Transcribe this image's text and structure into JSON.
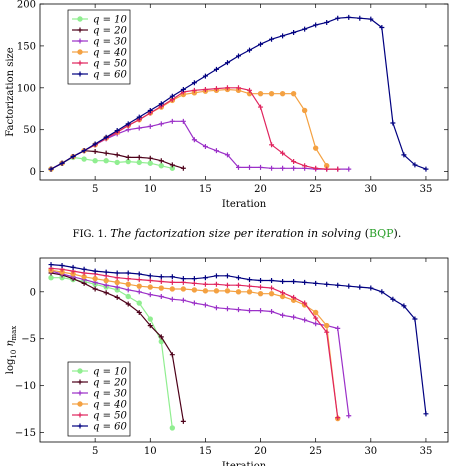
{
  "caption": {
    "fig_label": "Fig. 1.",
    "text": "The factorization size per iteration in solving",
    "ref": "BQP",
    "ref_color": "#2ca02c"
  },
  "chart_data": [
    {
      "type": "line",
      "xlabel": "Iteration",
      "ylabel": "Factorization size",
      "xlim": [
        0,
        37
      ],
      "ylim": [
        -10,
        200
      ],
      "xticks": [
        5,
        10,
        15,
        20,
        25,
        30,
        35
      ],
      "yticks": [
        0,
        50,
        100,
        150,
        200
      ],
      "legend_position": "top-left",
      "series": [
        {
          "name": "q = 10",
          "color": "#90ee90",
          "marker": "circle",
          "x": [
            1,
            2,
            3,
            4,
            5,
            6,
            7,
            8,
            9,
            10,
            11,
            12
          ],
          "y": [
            3,
            10,
            17,
            15,
            13,
            13,
            11,
            12,
            11,
            10,
            7,
            4
          ]
        },
        {
          "name": "q = 20",
          "color": "#4d0019",
          "marker": "plus",
          "x": [
            1,
            2,
            3,
            4,
            5,
            6,
            7,
            8,
            9,
            10,
            11,
            12,
            13
          ],
          "y": [
            3,
            10,
            18,
            25,
            24,
            22,
            20,
            17,
            17,
            16,
            13,
            8,
            4
          ]
        },
        {
          "name": "q = 30",
          "color": "#9b30c8",
          "marker": "plus",
          "x": [
            1,
            2,
            3,
            4,
            5,
            6,
            7,
            8,
            9,
            10,
            11,
            12,
            13,
            14,
            15,
            16,
            17,
            18,
            19,
            20,
            21,
            22,
            23,
            24,
            25,
            26,
            27,
            28
          ],
          "y": [
            3,
            10,
            18,
            25,
            32,
            39,
            45,
            50,
            52,
            54,
            57,
            60,
            60,
            38,
            30,
            25,
            20,
            5,
            5,
            5,
            4,
            4,
            4,
            4,
            3,
            3,
            3,
            3
          ]
        },
        {
          "name": "q = 40",
          "color": "#f4a142",
          "marker": "circle",
          "x": [
            1,
            2,
            3,
            4,
            5,
            6,
            7,
            8,
            9,
            10,
            11,
            12,
            13,
            14,
            15,
            16,
            17,
            18,
            19,
            20,
            21,
            22,
            23,
            24,
            25,
            26
          ],
          "y": [
            3,
            10,
            18,
            25,
            32,
            40,
            47,
            55,
            62,
            70,
            77,
            85,
            92,
            94,
            96,
            97,
            98,
            97,
            93,
            93,
            93,
            93,
            93,
            73,
            28,
            7
          ]
        },
        {
          "name": "q = 50",
          "color": "#e0245e",
          "marker": "plus",
          "x": [
            1,
            2,
            3,
            4,
            5,
            6,
            7,
            8,
            9,
            10,
            11,
            12,
            13,
            14,
            15,
            16,
            17,
            18,
            19,
            20,
            21,
            22,
            23,
            24,
            25,
            26,
            27
          ],
          "y": [
            3,
            10,
            18,
            25,
            32,
            40,
            47,
            55,
            62,
            70,
            78,
            86,
            95,
            97,
            98,
            99,
            100,
            100,
            97,
            77,
            32,
            22,
            12,
            7,
            4,
            3,
            3
          ]
        },
        {
          "name": "q = 60",
          "color": "#000080",
          "marker": "plus",
          "x": [
            1,
            2,
            3,
            4,
            5,
            6,
            7,
            8,
            9,
            10,
            11,
            12,
            13,
            14,
            15,
            16,
            17,
            18,
            19,
            20,
            21,
            22,
            23,
            24,
            25,
            26,
            27,
            28,
            29,
            30,
            31,
            32,
            33,
            34,
            35
          ],
          "y": [
            3,
            10,
            18,
            25,
            33,
            41,
            49,
            57,
            65,
            73,
            81,
            90,
            98,
            106,
            114,
            122,
            130,
            138,
            145,
            152,
            158,
            162,
            166,
            170,
            175,
            178,
            183,
            184,
            183,
            182,
            172,
            58,
            20,
            8,
            3
          ]
        }
      ]
    },
    {
      "type": "line",
      "xlabel": "Iteration",
      "ylabel": "log10 η_max",
      "xlim": [
        0,
        37
      ],
      "ylim": [
        -16,
        3.6
      ],
      "xticks": [
        5,
        10,
        15,
        20,
        25,
        30,
        35
      ],
      "yticks": [
        0,
        -5,
        -10,
        -15
      ],
      "legend_position": "bottom-left",
      "series": [
        {
          "name": "q = 10",
          "color": "#90ee90",
          "marker": "circle",
          "x": [
            1,
            2,
            3,
            4,
            5,
            6,
            7,
            8,
            9,
            10,
            11,
            12
          ],
          "y": [
            1.5,
            1.5,
            1.3,
            1.1,
            0.8,
            0.5,
            0.2,
            -0.5,
            -1.2,
            -2.9,
            -5.3,
            -14.5
          ]
        },
        {
          "name": "q = 20",
          "color": "#4d0019",
          "marker": "plus",
          "x": [
            1,
            2,
            3,
            4,
            5,
            6,
            7,
            8,
            9,
            10,
            11,
            12,
            13
          ],
          "y": [
            2.0,
            1.8,
            1.4,
            0.9,
            0.3,
            -0.1,
            -0.6,
            -1.3,
            -2.2,
            -3.6,
            -4.8,
            -6.7,
            -13.8
          ]
        },
        {
          "name": "q = 30",
          "color": "#9b30c8",
          "marker": "plus",
          "x": [
            1,
            2,
            3,
            4,
            5,
            6,
            7,
            8,
            9,
            10,
            11,
            12,
            13,
            14,
            15,
            16,
            17,
            18,
            19,
            20,
            21,
            22,
            23,
            24,
            25,
            26,
            27,
            28
          ],
          "y": [
            2.2,
            1.9,
            1.6,
            1.3,
            1.0,
            0.7,
            0.5,
            0.2,
            0.0,
            -0.3,
            -0.5,
            -0.8,
            -0.9,
            -1.2,
            -1.4,
            -1.7,
            -1.8,
            -1.9,
            -2.0,
            -2.0,
            -2.1,
            -2.5,
            -2.7,
            -3.0,
            -3.4,
            -3.6,
            -3.9,
            -13.2
          ]
        },
        {
          "name": "q = 40",
          "color": "#f4a142",
          "marker": "circle",
          "x": [
            1,
            2,
            3,
            4,
            5,
            6,
            7,
            8,
            9,
            10,
            11,
            12,
            13,
            14,
            15,
            16,
            17,
            18,
            19,
            20,
            21,
            22,
            23,
            24,
            25,
            26,
            27
          ],
          "y": [
            2.3,
            2.1,
            1.9,
            1.6,
            1.4,
            1.2,
            1.0,
            0.8,
            0.6,
            0.5,
            0.4,
            0.3,
            0.3,
            0.2,
            0.1,
            0.1,
            0.1,
            0.0,
            0.0,
            -0.2,
            -0.2,
            -0.5,
            -0.9,
            -1.4,
            -2.2,
            -3.6,
            -13.5
          ]
        },
        {
          "name": "q = 50",
          "color": "#e0245e",
          "marker": "plus",
          "x": [
            1,
            2,
            3,
            4,
            5,
            6,
            7,
            8,
            9,
            10,
            11,
            12,
            13,
            14,
            15,
            16,
            17,
            18,
            19,
            20,
            21,
            22,
            23,
            24,
            25,
            26,
            27
          ],
          "y": [
            2.5,
            2.4,
            2.2,
            2.0,
            1.9,
            1.7,
            1.5,
            1.4,
            1.3,
            1.2,
            1.1,
            1.0,
            1.0,
            0.9,
            0.8,
            0.8,
            0.7,
            0.7,
            0.6,
            0.5,
            0.4,
            -0.1,
            -0.6,
            -1.2,
            -2.8,
            -4.3,
            -13.4
          ]
        },
        {
          "name": "q = 60",
          "color": "#000080",
          "marker": "plus",
          "x": [
            1,
            2,
            3,
            4,
            5,
            6,
            7,
            8,
            9,
            10,
            11,
            12,
            13,
            14,
            15,
            16,
            17,
            18,
            19,
            20,
            21,
            22,
            23,
            24,
            25,
            26,
            27,
            28,
            29,
            30,
            31,
            32,
            33,
            34,
            35
          ],
          "y": [
            2.9,
            2.8,
            2.6,
            2.4,
            2.2,
            2.1,
            2.0,
            2.0,
            1.9,
            1.7,
            1.6,
            1.6,
            1.4,
            1.4,
            1.5,
            1.7,
            1.7,
            1.5,
            1.3,
            1.2,
            1.2,
            1.1,
            1.1,
            1.0,
            0.9,
            0.8,
            0.7,
            0.6,
            0.5,
            0.4,
            0.0,
            -0.8,
            -1.5,
            -2.9,
            -13.0
          ]
        }
      ]
    }
  ]
}
